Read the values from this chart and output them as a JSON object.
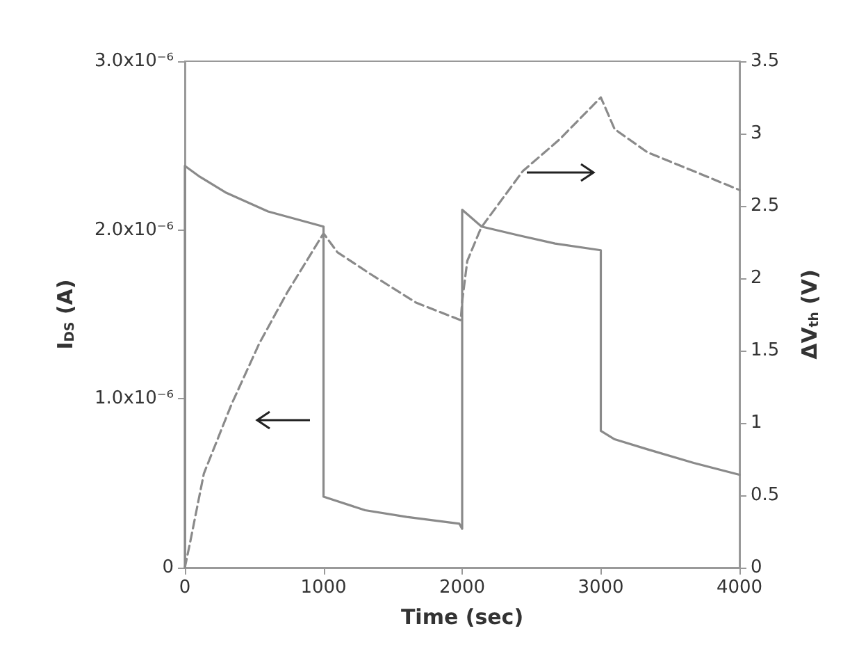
{
  "chart_data": {
    "type": "line",
    "xlabel": "Time (sec)",
    "ylabel": "I$_{DS}$ (A)",
    "y2label": "ΔV$_{th}$ (V)",
    "xlim": [
      0,
      4000
    ],
    "xticks": [
      0,
      1000,
      2000,
      3000,
      4000
    ],
    "ylim": [
      0,
      3e-06
    ],
    "yticks": [
      0,
      {
        "value": 1e-06,
        "label": "1.0x10⁻⁶"
      },
      {
        "value": 2e-06,
        "label": "2.0x10⁻⁶"
      },
      {
        "value": 3e-06,
        "label": "3.0x10⁻⁶"
      }
    ],
    "y2lim": [
      0,
      3.5
    ],
    "y2ticks": [
      0,
      0.5,
      1,
      1.5,
      2,
      2.5,
      3,
      3.5
    ],
    "grid": false,
    "marker": "none",
    "series": [
      {
        "color": "#8a8a8a",
        "line_style": "solid",
        "x": [
          0,
          0,
          100,
          300,
          600,
          1000,
          1000,
          1300,
          1600,
          1980,
          2000,
          2000,
          2140,
          2400,
          2670,
          3000,
          3000,
          3100,
          3340,
          3670,
          4000
        ],
        "values": [
          0,
          2.38e-06,
          2.32e-06,
          2.22e-06,
          2.11e-06,
          2.02e-06,
          4.2e-07,
          3.4e-07,
          3e-07,
          2.6e-07,
          2.3e-07,
          2.12e-06,
          2.02e-06,
          1.97e-06,
          1.92e-06,
          1.88e-06,
          8.1e-07,
          7.6e-07,
          7e-07,
          6.2e-07,
          5.5e-07
        ]
      },
      {
        "color": "#8a8a8a",
        "line_style": "dashed",
        "axis": "y2",
        "x": [
          0,
          37,
          137,
          337,
          537,
          737,
          1000,
          1100,
          1337,
          1670,
          1990,
          2000,
          2037,
          2137,
          2437,
          2703,
          3000,
          3100,
          3337,
          3670,
          4000
        ],
        "values": [
          0,
          0.17,
          0.65,
          1.13,
          1.55,
          1.9,
          2.31,
          2.18,
          2.03,
          1.83,
          1.71,
          1.84,
          2.12,
          2.35,
          2.74,
          2.96,
          3.25,
          3.03,
          2.87,
          2.74,
          2.61
        ]
      }
    ]
  }
}
